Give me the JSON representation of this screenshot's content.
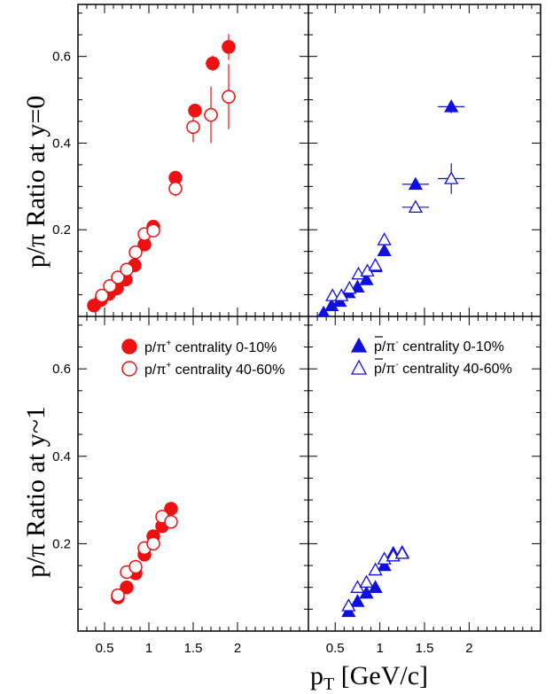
{
  "chart_data": {
    "type": "scatter",
    "ylabel_top": "p/π Ratio at y=0",
    "ylabel_bottom": "p/π Ratio at y~1",
    "xlabel_main": "p",
    "xlabel_sub": "T",
    "xlabel_units": " [GeV/c]",
    "xlim": [
      0.2,
      2.8
    ],
    "ylim": [
      0,
      0.72
    ],
    "x_ticks": [
      0.5,
      1,
      1.5,
      2
    ],
    "x_tick_labels": [
      "0.5",
      "1",
      "1.5",
      "2"
    ],
    "y_ticks": [
      0.2,
      0.4,
      0.6
    ],
    "y_tick_labels": [
      "0.2",
      "0.4",
      "0.6"
    ],
    "colors": {
      "red": "#ee1111",
      "blue": "#1010dd"
    },
    "legend": {
      "left": [
        {
          "base": "p/π",
          "sup": "+",
          "rest": " centrality 0-10%"
        },
        {
          "base": "p/π",
          "sup": "+",
          "rest": " centrality 40-60%"
        }
      ],
      "right": [
        {
          "base": "p/π",
          "sup": "-",
          "rest": " centrality 0-10%"
        },
        {
          "base": "p/π",
          "sup": "-",
          "rest": " centrality 40-60%"
        }
      ]
    },
    "panels": [
      {
        "id": "top-left",
        "series": [
          {
            "name": "p/π+ centrality 0-10%",
            "marker": "circle",
            "filled": true,
            "color": "red",
            "points": [
              [
                0.38,
                0.025
              ],
              [
                0.46,
                0.038
              ],
              [
                0.55,
                0.052
              ],
              [
                0.64,
                0.065
              ],
              [
                0.74,
                0.085
              ],
              [
                0.84,
                0.118
              ],
              [
                0.95,
                0.166
              ],
              [
                1.05,
                0.207
              ],
              [
                1.3,
                0.32
              ],
              [
                1.52,
                0.475
              ],
              [
                1.72,
                0.584
              ],
              [
                1.9,
                0.622
              ]
            ],
            "xerr": [
              0,
              0,
              0,
              0,
              0,
              0,
              0,
              0,
              0.05,
              0.05,
              0.08,
              0.08
            ],
            "yerr": [
              0,
              0,
              0,
              0,
              0,
              0,
              0,
              0,
              0.01,
              0.012,
              0.018,
              0.03
            ]
          },
          {
            "name": "p/π+ centrality 40-60%",
            "marker": "circle",
            "filled": false,
            "color": "red",
            "points": [
              [
                0.47,
                0.048
              ],
              [
                0.56,
                0.07
              ],
              [
                0.65,
                0.09
              ],
              [
                0.75,
                0.108
              ],
              [
                0.85,
                0.148
              ],
              [
                0.95,
                0.19
              ],
              [
                1.05,
                0.198
              ],
              [
                1.3,
                0.295
              ],
              [
                1.5,
                0.437
              ],
              [
                1.7,
                0.465
              ],
              [
                1.9,
                0.507
              ]
            ],
            "xerr": [
              0,
              0,
              0,
              0,
              0,
              0,
              0,
              0.05,
              0.05,
              0.08,
              0.08
            ],
            "yerr": [
              0,
              0,
              0,
              0,
              0,
              0,
              0,
              0.018,
              0.035,
              0.065,
              0.075
            ]
          }
        ]
      },
      {
        "id": "top-right",
        "series": [
          {
            "name": "p/π- centrality 0-10%",
            "marker": "triangle",
            "filled": true,
            "color": "blue",
            "points": [
              [
                0.37,
                0.008
              ],
              [
                0.46,
                0.025
              ],
              [
                0.55,
                0.035
              ],
              [
                0.65,
                0.055
              ],
              [
                0.75,
                0.068
              ],
              [
                0.85,
                0.085
              ],
              [
                0.95,
                0.115
              ],
              [
                1.05,
                0.152
              ],
              [
                1.4,
                0.305
              ],
              [
                1.8,
                0.484
              ]
            ],
            "xerr": [
              0,
              0,
              0,
              0,
              0,
              0,
              0,
              0,
              0.15,
              0.15
            ],
            "yerr": [
              0,
              0,
              0,
              0,
              0,
              0,
              0,
              0,
              0.01,
              0.015
            ]
          },
          {
            "name": "p/π- centrality 40-60%",
            "marker": "triangle",
            "filled": false,
            "color": "blue",
            "points": [
              [
                0.47,
                0.048
              ],
              [
                0.57,
                0.048
              ],
              [
                0.66,
                0.065
              ],
              [
                0.76,
                0.098
              ],
              [
                0.86,
                0.105
              ],
              [
                0.95,
                0.118
              ],
              [
                1.05,
                0.177
              ],
              [
                1.4,
                0.252
              ],
              [
                1.8,
                0.318
              ]
            ],
            "xerr": [
              0,
              0,
              0,
              0,
              0,
              0,
              0,
              0.15,
              0.15
            ],
            "yerr": [
              0,
              0,
              0,
              0,
              0,
              0,
              0,
              0.01,
              0.035
            ]
          }
        ]
      },
      {
        "id": "bottom-left",
        "series": [
          {
            "name": "p/π+ centrality 0-10%",
            "marker": "circle",
            "filled": true,
            "color": "red",
            "points": [
              [
                0.65,
                0.077
              ],
              [
                0.75,
                0.1
              ],
              [
                0.85,
                0.132
              ],
              [
                0.95,
                0.175
              ],
              [
                1.05,
                0.217
              ],
              [
                1.15,
                0.24
              ],
              [
                1.25,
                0.28
              ]
            ],
            "xerr": [
              0,
              0,
              0,
              0,
              0,
              0,
              0
            ],
            "yerr": [
              0,
              0,
              0,
              0,
              0,
              0,
              0
            ]
          },
          {
            "name": "p/π+ centrality 40-60%",
            "marker": "circle",
            "filled": false,
            "color": "red",
            "points": [
              [
                0.65,
                0.082
              ],
              [
                0.75,
                0.135
              ],
              [
                0.85,
                0.147
              ],
              [
                0.95,
                0.19
              ],
              [
                1.05,
                0.2
              ],
              [
                1.15,
                0.262
              ],
              [
                1.25,
                0.25
              ]
            ],
            "xerr": [
              0,
              0,
              0,
              0,
              0,
              0,
              0
            ],
            "yerr": [
              0,
              0,
              0,
              0,
              0,
              0,
              0
            ]
          }
        ]
      },
      {
        "id": "bottom-right",
        "series": [
          {
            "name": "p/π- centrality 0-10%",
            "marker": "triangle",
            "filled": true,
            "color": "blue",
            "points": [
              [
                0.65,
                0.045
              ],
              [
                0.75,
                0.068
              ],
              [
                0.85,
                0.087
              ],
              [
                0.95,
                0.1
              ],
              [
                1.05,
                0.15
              ],
              [
                1.15,
                0.178
              ],
              [
                1.25,
                0.18
              ]
            ],
            "xerr": [
              0,
              0,
              0,
              0,
              0,
              0,
              0
            ],
            "yerr": [
              0,
              0,
              0,
              0,
              0,
              0,
              0
            ]
          },
          {
            "name": "p/π- centrality 40-60%",
            "marker": "triangle",
            "filled": false,
            "color": "blue",
            "points": [
              [
                0.65,
                0.058
              ],
              [
                0.75,
                0.1
              ],
              [
                0.85,
                0.112
              ],
              [
                0.95,
                0.14
              ],
              [
                1.05,
                0.165
              ],
              [
                1.15,
                0.172
              ],
              [
                1.25,
                0.178
              ]
            ],
            "xerr": [
              0,
              0,
              0,
              0,
              0,
              0,
              0
            ],
            "yerr": [
              0,
              0,
              0,
              0,
              0,
              0,
              0
            ]
          }
        ]
      }
    ]
  }
}
